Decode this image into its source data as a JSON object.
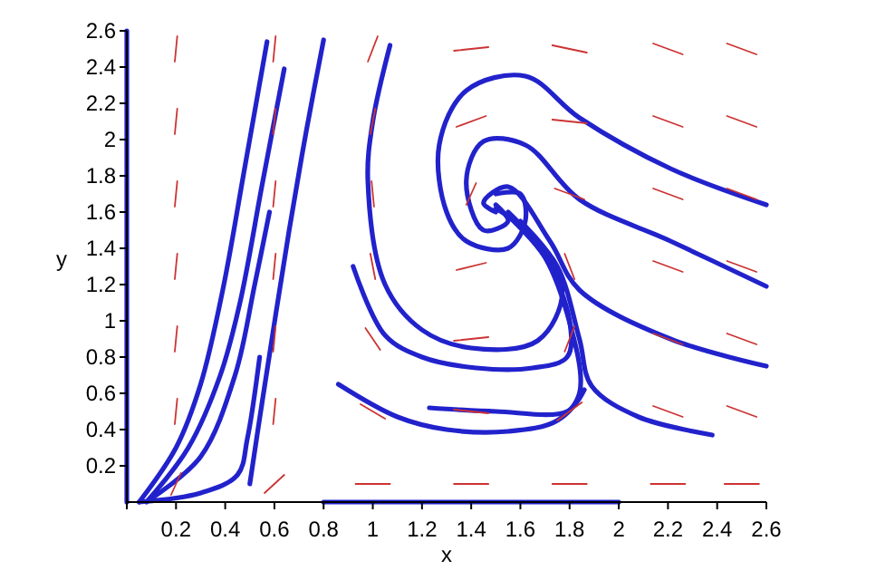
{
  "chart_data": {
    "type": "line",
    "xlabel": "x",
    "ylabel": "y",
    "xlim": [
      0,
      2.6
    ],
    "ylim": [
      0,
      2.6
    ],
    "xticks": [
      {
        "value": 0,
        "label": null
      },
      0.2,
      0.4,
      0.6,
      0.8,
      1,
      1.2,
      1.4,
      1.6,
      1.8,
      2,
      2.2,
      2.4,
      2.6
    ],
    "yticks": [
      0.2,
      0.4,
      0.6,
      0.8,
      1,
      1.2,
      1.4,
      1.6,
      1.8,
      2,
      2.2,
      2.4,
      2.6
    ],
    "series": [
      {
        "color": "#cc3333",
        "x": [
          0.18,
          0.22
        ],
        "values": [
          0.04,
          0.16
        ]
      },
      {
        "color": "#cc3333",
        "x": [
          0.195,
          0.205
        ],
        "values": [
          0.43,
          0.57
        ]
      },
      {
        "color": "#cc3333",
        "x": [
          0.195,
          0.205
        ],
        "values": [
          0.83,
          0.97
        ]
      },
      {
        "color": "#cc3333",
        "x": [
          0.195,
          0.205
        ],
        "values": [
          1.23,
          1.37
        ]
      },
      {
        "color": "#cc3333",
        "x": [
          0.195,
          0.205
        ],
        "values": [
          1.63,
          1.77
        ]
      },
      {
        "color": "#cc3333",
        "x": [
          0.195,
          0.205
        ],
        "values": [
          2.03,
          2.17
        ]
      },
      {
        "color": "#cc3333",
        "x": [
          0.195,
          0.205
        ],
        "values": [
          2.43,
          2.57
        ]
      },
      {
        "color": "#cc3333",
        "x": [
          0.56,
          0.64
        ],
        "values": [
          0.05,
          0.15
        ]
      },
      {
        "color": "#cc3333",
        "x": [
          0.595,
          0.605
        ],
        "values": [
          0.43,
          0.57
        ]
      },
      {
        "color": "#cc3333",
        "x": [
          0.595,
          0.605
        ],
        "values": [
          0.83,
          0.97
        ]
      },
      {
        "color": "#cc3333",
        "x": [
          0.595,
          0.605
        ],
        "values": [
          1.23,
          1.37
        ]
      },
      {
        "color": "#cc3333",
        "x": [
          0.595,
          0.605
        ],
        "values": [
          1.63,
          1.77
        ]
      },
      {
        "color": "#cc3333",
        "x": [
          0.595,
          0.605
        ],
        "values": [
          2.03,
          2.17
        ]
      },
      {
        "color": "#cc3333",
        "x": [
          0.595,
          0.605
        ],
        "values": [
          2.43,
          2.57
        ]
      },
      {
        "color": "#cc3333",
        "x": [
          0.93,
          1.07
        ],
        "values": [
          0.1,
          0.1
        ]
      },
      {
        "color": "#cc3333",
        "x": [
          0.95,
          1.05
        ],
        "values": [
          0.54,
          0.46
        ]
      },
      {
        "color": "#cc3333",
        "x": [
          0.97,
          1.03
        ],
        "values": [
          0.96,
          0.84
        ]
      },
      {
        "color": "#cc3333",
        "x": [
          0.99,
          1.01
        ],
        "values": [
          1.37,
          1.23
        ]
      },
      {
        "color": "#cc3333",
        "x": [
          0.995,
          1.005
        ],
        "values": [
          1.77,
          1.63
        ]
      },
      {
        "color": "#cc3333",
        "x": [
          1.01,
          0.99
        ],
        "values": [
          2.17,
          2.03
        ]
      },
      {
        "color": "#cc3333",
        "x": [
          1.02,
          0.98
        ],
        "values": [
          2.57,
          2.43
        ]
      },
      {
        "color": "#cc3333",
        "x": [
          1.33,
          1.47
        ],
        "values": [
          0.1,
          0.1
        ]
      },
      {
        "color": "#cc3333",
        "x": [
          1.33,
          1.47
        ],
        "values": [
          0.51,
          0.49
        ]
      },
      {
        "color": "#cc3333",
        "x": [
          1.33,
          1.47
        ],
        "values": [
          0.89,
          0.91
        ]
      },
      {
        "color": "#cc3333",
        "x": [
          1.34,
          1.46
        ],
        "values": [
          1.28,
          1.32
        ]
      },
      {
        "color": "#cc3333",
        "x": [
          1.42,
          1.38
        ],
        "values": [
          1.76,
          1.64
        ]
      },
      {
        "color": "#cc3333",
        "x": [
          1.46,
          1.34
        ],
        "values": [
          2.13,
          2.07
        ]
      },
      {
        "color": "#cc3333",
        "x": [
          1.47,
          1.33
        ],
        "values": [
          2.51,
          2.49
        ]
      },
      {
        "color": "#cc3333",
        "x": [
          1.73,
          1.87
        ],
        "values": [
          0.1,
          0.1
        ]
      },
      {
        "color": "#cc3333",
        "x": [
          1.75,
          1.85
        ],
        "values": [
          0.45,
          0.55
        ]
      },
      {
        "color": "#cc3333",
        "x": [
          1.78,
          1.82
        ],
        "values": [
          0.83,
          0.97
        ]
      },
      {
        "color": "#cc3333",
        "x": [
          1.82,
          1.78
        ],
        "values": [
          1.23,
          1.37
        ]
      },
      {
        "color": "#cc3333",
        "x": [
          1.86,
          1.74
        ],
        "values": [
          1.67,
          1.73
        ]
      },
      {
        "color": "#cc3333",
        "x": [
          1.87,
          1.73
        ],
        "values": [
          2.09,
          2.11
        ]
      },
      {
        "color": "#cc3333",
        "x": [
          1.87,
          1.73
        ],
        "values": [
          2.48,
          2.52
        ]
      },
      {
        "color": "#cc3333",
        "x": [
          2.27,
          2.13
        ],
        "values": [
          0.1,
          0.1
        ]
      },
      {
        "color": "#cc3333",
        "x": [
          2.26,
          2.14
        ],
        "values": [
          0.47,
          0.53
        ]
      },
      {
        "color": "#cc3333",
        "x": [
          2.26,
          2.14
        ],
        "values": [
          0.87,
          0.93
        ]
      },
      {
        "color": "#cc3333",
        "x": [
          2.26,
          2.14
        ],
        "values": [
          1.27,
          1.33
        ]
      },
      {
        "color": "#cc3333",
        "x": [
          2.26,
          2.14
        ],
        "values": [
          1.67,
          1.73
        ]
      },
      {
        "color": "#cc3333",
        "x": [
          2.26,
          2.14
        ],
        "values": [
          2.07,
          2.13
        ]
      },
      {
        "color": "#cc3333",
        "x": [
          2.26,
          2.14
        ],
        "values": [
          2.47,
          2.53
        ]
      },
      {
        "color": "#cc3333",
        "x": [
          2.57,
          2.43
        ],
        "values": [
          0.1,
          0.1
        ]
      },
      {
        "color": "#cc3333",
        "x": [
          2.56,
          2.44
        ],
        "values": [
          0.47,
          0.53
        ]
      },
      {
        "color": "#cc3333",
        "x": [
          2.56,
          2.44
        ],
        "values": [
          0.87,
          0.93
        ]
      },
      {
        "color": "#cc3333",
        "x": [
          2.56,
          2.44
        ],
        "values": [
          1.27,
          1.33
        ]
      },
      {
        "color": "#cc3333",
        "x": [
          2.56,
          2.44
        ],
        "values": [
          1.67,
          1.73
        ]
      },
      {
        "color": "#cc3333",
        "x": [
          2.56,
          2.44
        ],
        "values": [
          2.07,
          2.13
        ]
      },
      {
        "color": "#cc3333",
        "x": [
          2.56,
          2.44
        ],
        "values": [
          2.47,
          2.53
        ]
      },
      {
        "color": "#2222cc",
        "x": [
          0.05,
          0.2,
          0.3,
          0.39,
          0.48,
          0.57
        ],
        "values": [
          0,
          0.3,
          0.65,
          1.17,
          1.85,
          2.54
        ]
      },
      {
        "color": "#2222cc",
        "x": [
          0.08,
          0.25,
          0.38,
          0.46,
          0.55,
          0.64
        ],
        "values": [
          0,
          0.3,
          0.7,
          1.1,
          1.75,
          2.39
        ]
      },
      {
        "color": "#2222cc",
        "x": [
          0.1,
          0.3,
          0.44,
          0.52,
          0.58
        ],
        "values": [
          0.02,
          0.25,
          0.7,
          1.2,
          1.6
        ]
      },
      {
        "color": "#2222cc",
        "x": [
          0.05,
          0.3,
          0.45,
          0.49,
          0.54
        ],
        "values": [
          0,
          0.05,
          0.15,
          0.35,
          0.8
        ]
      },
      {
        "color": "#2222cc",
        "x": [
          0.5,
          0.55,
          0.66,
          0.73,
          0.8
        ],
        "values": [
          0.1,
          0.55,
          1.5,
          2.05,
          2.55
        ]
      },
      {
        "color": "#2222cc",
        "x": [
          1.07,
          1.0,
          0.98,
          1.05,
          1.2,
          1.4,
          1.67,
          1.77,
          1.62,
          1.5
        ],
        "values": [
          2.52,
          2.1,
          1.77,
          1.2,
          0.95,
          0.85,
          0.89,
          1.17,
          1.5,
          1.62
        ]
      },
      {
        "color": "#2222cc",
        "x": [
          0.92,
          1.05,
          1.2,
          1.42,
          1.65,
          1.79,
          1.8,
          1.7,
          1.55
        ],
        "values": [
          1.3,
          0.92,
          0.8,
          0.74,
          0.74,
          0.8,
          1.0,
          1.35,
          1.58
        ]
      },
      {
        "color": "#2222cc",
        "x": [
          0.86,
          1.1,
          1.3,
          1.55,
          1.75,
          1.84,
          1.79,
          1.68,
          1.55
        ],
        "values": [
          0.65,
          0.47,
          0.4,
          0.39,
          0.45,
          0.6,
          1.04,
          1.4,
          1.6
        ]
      },
      {
        "color": "#2222cc",
        "x": [
          1.23,
          1.5,
          1.79,
          1.86
        ],
        "values": [
          0.52,
          0.5,
          0.5,
          0.62
        ]
      },
      {
        "color": "#2222cc",
        "x": [
          2.6,
          2.21,
          1.84,
          1.62,
          1.38,
          1.27,
          1.3,
          1.38,
          1.55,
          1.62,
          1.6,
          1.5
        ],
        "values": [
          1.64,
          1.84,
          2.12,
          2.35,
          2.27,
          1.97,
          1.6,
          1.44,
          1.4,
          1.55,
          1.7,
          1.7
        ]
      },
      {
        "color": "#2222cc",
        "x": [
          2.6,
          2.21,
          1.84,
          1.62,
          1.45,
          1.38,
          1.45,
          1.55,
          1.5
        ],
        "values": [
          1.19,
          1.44,
          1.67,
          1.97,
          1.99,
          1.77,
          1.5,
          1.55,
          1.64
        ]
      },
      {
        "color": "#2222cc",
        "x": [
          2.6,
          2.21,
          1.84,
          1.72,
          1.55,
          1.45,
          1.5
        ],
        "values": [
          0.75,
          0.9,
          1.17,
          1.44,
          1.74,
          1.65,
          1.6
        ]
      },
      {
        "color": "#2222cc",
        "x": [
          2.38,
          2.08,
          1.89,
          1.84,
          1.75,
          1.6
        ],
        "values": [
          0.37,
          0.47,
          0.64,
          0.9,
          1.3,
          1.55
        ]
      },
      {
        "color": "#2222cc",
        "x": [
          0.8,
          2
        ],
        "values": [
          0,
          0
        ]
      },
      {
        "color": "#2222cc",
        "x": [
          0,
          0
        ],
        "values": [
          0,
          2.6
        ]
      }
    ]
  }
}
